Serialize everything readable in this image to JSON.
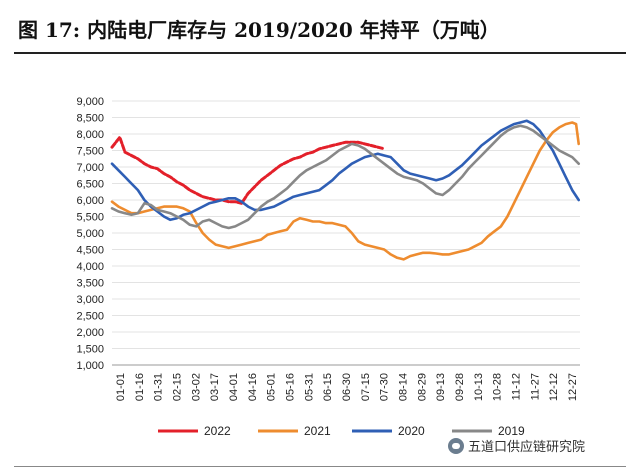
{
  "title": "图  17: 内陆电厂库存与 2019/2020 年持平（万吨）",
  "watermark": {
    "text": "五道口供应链研究院",
    "icon": "chat-bubble-icon"
  },
  "chart_data": {
    "type": "line",
    "title": "图  17: 内陆电厂库存与 2019/2020 年持平（万吨）",
    "xlabel": "",
    "ylabel": "",
    "ylim": [
      1000,
      9000
    ],
    "yticks": [
      "9,000",
      "8,500",
      "8,000",
      "7,500",
      "7,000",
      "6,500",
      "6,000",
      "5,500",
      "5,000",
      "4,500",
      "4,000",
      "3,500",
      "3,000",
      "2,500",
      "2,000",
      "1,500",
      "1,000"
    ],
    "xticks": [
      "01-01",
      "01-16",
      "01-31",
      "02-15",
      "03-02",
      "03-17",
      "04-01",
      "04-16",
      "05-01",
      "05-16",
      "05-31",
      "06-15",
      "06-30",
      "07-15",
      "07-30",
      "08-14",
      "08-29",
      "09-13",
      "09-28",
      "10-13",
      "10-28",
      "11-12",
      "11-27",
      "12-12",
      "12-27"
    ],
    "x_range_days": [
      0,
      361
    ],
    "grid": "horizontal",
    "legend_position": "bottom",
    "series": [
      {
        "name": "2022",
        "color": "#e3202a",
        "x": [
          0,
          4,
          6,
          10,
          15,
          20,
          25,
          30,
          35,
          40,
          45,
          50,
          55,
          60,
          65,
          70,
          75,
          80,
          85,
          90,
          95,
          100,
          105,
          110,
          115,
          120,
          125,
          130,
          135,
          140,
          145,
          150,
          155,
          160,
          165,
          170,
          175,
          180,
          185,
          190,
          195,
          200,
          205,
          210
        ],
        "values": [
          7600,
          7800,
          7900,
          7450,
          7350,
          7250,
          7100,
          7000,
          6950,
          6800,
          6700,
          6550,
          6450,
          6300,
          6200,
          6100,
          6050,
          6000,
          6000,
          5950,
          5950,
          5900,
          6200,
          6400,
          6600,
          6750,
          6900,
          7050,
          7150,
          7250,
          7300,
          7400,
          7450,
          7550,
          7600,
          7650,
          7700,
          7750,
          7750,
          7750,
          7700,
          7650,
          7600,
          7550
        ]
      },
      {
        "name": "2021",
        "color": "#ee8c2f",
        "x": [
          0,
          5,
          10,
          15,
          20,
          25,
          30,
          35,
          40,
          45,
          50,
          55,
          60,
          65,
          70,
          75,
          80,
          85,
          90,
          95,
          100,
          105,
          110,
          115,
          120,
          125,
          130,
          135,
          140,
          145,
          150,
          155,
          160,
          165,
          170,
          175,
          180,
          185,
          190,
          195,
          200,
          205,
          210,
          215,
          220,
          225,
          230,
          235,
          240,
          245,
          250,
          255,
          260,
          265,
          270,
          275,
          280,
          285,
          290,
          295,
          300,
          305,
          310,
          315,
          320,
          325,
          330,
          335,
          340,
          345,
          350,
          355,
          358,
          360
        ],
        "values": [
          5950,
          5800,
          5700,
          5600,
          5600,
          5650,
          5700,
          5750,
          5800,
          5800,
          5800,
          5750,
          5650,
          5300,
          5000,
          4800,
          4650,
          4600,
          4550,
          4600,
          4650,
          4700,
          4750,
          4800,
          4950,
          5000,
          5050,
          5100,
          5350,
          5450,
          5400,
          5350,
          5350,
          5300,
          5300,
          5250,
          5200,
          5000,
          4750,
          4650,
          4600,
          4550,
          4500,
          4350,
          4250,
          4200,
          4300,
          4350,
          4400,
          4400,
          4380,
          4350,
          4350,
          4400,
          4450,
          4500,
          4600,
          4700,
          4900,
          5050,
          5200,
          5500,
          5900,
          6300,
          6700,
          7100,
          7500,
          7800,
          8050,
          8200,
          8300,
          8350,
          8300,
          7700
        ]
      },
      {
        "name": "2020",
        "color": "#2f5fb5",
        "x": [
          0,
          5,
          10,
          15,
          20,
          25,
          30,
          35,
          40,
          45,
          50,
          55,
          60,
          65,
          70,
          75,
          80,
          85,
          90,
          95,
          100,
          105,
          110,
          115,
          120,
          125,
          130,
          135,
          140,
          145,
          150,
          155,
          160,
          165,
          170,
          175,
          180,
          185,
          190,
          195,
          200,
          205,
          210,
          215,
          220,
          225,
          230,
          235,
          240,
          245,
          250,
          255,
          260,
          265,
          270,
          275,
          280,
          285,
          290,
          295,
          300,
          305,
          310,
          315,
          320,
          325,
          330,
          335,
          340,
          345,
          350,
          355,
          360
        ],
        "values": [
          7100,
          6900,
          6700,
          6500,
          6300,
          6000,
          5800,
          5650,
          5500,
          5400,
          5450,
          5550,
          5600,
          5700,
          5800,
          5900,
          5950,
          6000,
          6050,
          6050,
          5950,
          5800,
          5700,
          5700,
          5750,
          5800,
          5900,
          6000,
          6100,
          6150,
          6200,
          6250,
          6300,
          6450,
          6600,
          6800,
          6950,
          7100,
          7200,
          7300,
          7350,
          7400,
          7350,
          7300,
          7100,
          6900,
          6800,
          6750,
          6700,
          6650,
          6600,
          6650,
          6750,
          6900,
          7050,
          7250,
          7450,
          7650,
          7800,
          7950,
          8100,
          8200,
          8300,
          8350,
          8400,
          8300,
          8100,
          7800,
          7500,
          7100,
          6700,
          6300,
          6000
        ]
      },
      {
        "name": "2019",
        "color": "#888888",
        "x": [
          0,
          5,
          10,
          15,
          20,
          25,
          30,
          35,
          40,
          45,
          50,
          55,
          60,
          65,
          70,
          75,
          80,
          85,
          90,
          95,
          100,
          105,
          110,
          115,
          120,
          125,
          130,
          135,
          140,
          145,
          150,
          155,
          160,
          165,
          170,
          175,
          180,
          185,
          190,
          195,
          200,
          205,
          210,
          215,
          220,
          225,
          230,
          235,
          240,
          245,
          250,
          255,
          260,
          265,
          270,
          275,
          280,
          285,
          290,
          295,
          300,
          305,
          310,
          315,
          320,
          325,
          330,
          335,
          340,
          345,
          350,
          355,
          360
        ],
        "values": [
          5750,
          5650,
          5600,
          5550,
          5600,
          5900,
          5850,
          5700,
          5650,
          5600,
          5500,
          5400,
          5250,
          5200,
          5350,
          5400,
          5300,
          5200,
          5150,
          5200,
          5300,
          5400,
          5600,
          5800,
          5950,
          6050,
          6200,
          6350,
          6550,
          6750,
          6900,
          7000,
          7100,
          7200,
          7350,
          7500,
          7600,
          7700,
          7650,
          7550,
          7400,
          7250,
          7100,
          6950,
          6800,
          6700,
          6650,
          6600,
          6500,
          6350,
          6200,
          6150,
          6300,
          6500,
          6700,
          6950,
          7150,
          7350,
          7550,
          7750,
          7950,
          8100,
          8200,
          8250,
          8200,
          8100,
          7950,
          7800,
          7650,
          7500,
          7400,
          7300,
          7100
        ]
      }
    ]
  }
}
